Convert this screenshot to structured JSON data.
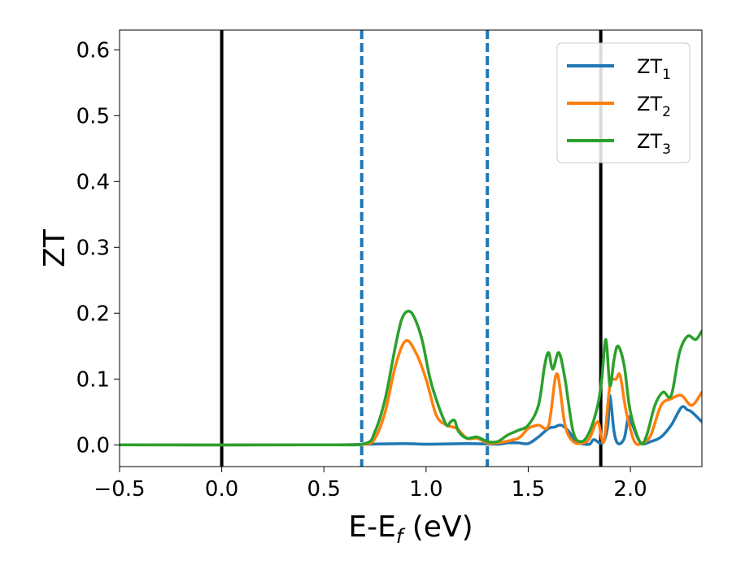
{
  "chart_data": {
    "type": "line",
    "xlabel": "E-E",
    "xlabel_sub": "f",
    "xlabel_unit": " (eV)",
    "ylabel": "ZT",
    "xlim": [
      -0.5,
      2.35
    ],
    "ylim": [
      -0.033,
      0.63
    ],
    "xticks": [
      -0.5,
      0.0,
      0.5,
      1.0,
      1.5,
      2.0
    ],
    "xtick_labels": [
      "−0.5",
      "0.0",
      "0.5",
      "1.0",
      "1.5",
      "2.0"
    ],
    "yticks": [
      0.0,
      0.1,
      0.2,
      0.3,
      0.4,
      0.5,
      0.6
    ],
    "ytick_labels": [
      "0.0",
      "0.1",
      "0.2",
      "0.3",
      "0.4",
      "0.5",
      "0.6"
    ],
    "legend_position": "top-right",
    "vlines": [
      {
        "x": 0.0,
        "style": "solid",
        "color": "#000000"
      },
      {
        "x": 1.855,
        "style": "solid",
        "color": "#000000"
      },
      {
        "x": 0.685,
        "style": "dashed",
        "color": "#1f77b4"
      },
      {
        "x": 1.3,
        "style": "dashed",
        "color": "#1f77b4"
      }
    ],
    "series": [
      {
        "name": "ZT",
        "sub": "1",
        "color": "#1f77b4",
        "x": [
          -0.5,
          0.5,
          0.7,
          0.9,
          1.0,
          1.2,
          1.35,
          1.4,
          1.45,
          1.5,
          1.55,
          1.6,
          1.63,
          1.66,
          1.7,
          1.73,
          1.76,
          1.8,
          1.82,
          1.85,
          1.87,
          1.89,
          1.9,
          1.92,
          1.94,
          1.97,
          1.99,
          2.01,
          2.05,
          2.1,
          2.15,
          2.2,
          2.25,
          2.28,
          2.3,
          2.35
        ],
        "y": [
          0,
          0,
          0.001,
          0.002,
          0.001,
          0.002,
          0.001,
          0.003,
          0.003,
          0.002,
          0.012,
          0.025,
          0.027,
          0.03,
          0.02,
          0.005,
          0.002,
          0.001,
          0.008,
          0.003,
          0.005,
          0.03,
          0.075,
          0.02,
          0.002,
          0.01,
          0.042,
          0.03,
          0.003,
          0.005,
          0.012,
          0.03,
          0.057,
          0.053,
          0.05,
          0.035
        ]
      },
      {
        "name": "ZT",
        "sub": "2",
        "color": "#ff7f0e",
        "x": [
          -0.5,
          0.5,
          0.7,
          0.75,
          0.8,
          0.85,
          0.9,
          0.95,
          1.0,
          1.05,
          1.1,
          1.15,
          1.2,
          1.25,
          1.3,
          1.35,
          1.45,
          1.5,
          1.55,
          1.6,
          1.64,
          1.68,
          1.72,
          1.77,
          1.8,
          1.84,
          1.87,
          1.9,
          1.93,
          1.95,
          1.98,
          2.02,
          2.06,
          2.1,
          2.15,
          2.2,
          2.25,
          2.3,
          2.35
        ],
        "y": [
          0,
          0,
          0.001,
          0.01,
          0.05,
          0.12,
          0.158,
          0.14,
          0.1,
          0.045,
          0.03,
          0.025,
          0.01,
          0.01,
          0.003,
          0.003,
          0.01,
          0.025,
          0.03,
          0.03,
          0.108,
          0.03,
          0.005,
          0.003,
          0.01,
          0.035,
          0.005,
          0.09,
          0.1,
          0.105,
          0.05,
          0.005,
          0.003,
          0.015,
          0.06,
          0.07,
          0.075,
          0.06,
          0.08
        ]
      },
      {
        "name": "ZT",
        "sub": "3",
        "color": "#2ca02c",
        "x": [
          -0.5,
          0.5,
          0.7,
          0.75,
          0.8,
          0.85,
          0.88,
          0.91,
          0.94,
          0.98,
          1.02,
          1.06,
          1.1,
          1.12,
          1.14,
          1.16,
          1.2,
          1.25,
          1.3,
          1.35,
          1.4,
          1.45,
          1.5,
          1.55,
          1.58,
          1.6,
          1.62,
          1.65,
          1.68,
          1.72,
          1.76,
          1.8,
          1.84,
          1.86,
          1.88,
          1.9,
          1.92,
          1.94,
          1.97,
          2.0,
          2.05,
          2.08,
          2.12,
          2.16,
          2.2,
          2.24,
          2.28,
          2.32,
          2.35
        ],
        "y": [
          0,
          0,
          0.002,
          0.02,
          0.07,
          0.15,
          0.19,
          0.203,
          0.195,
          0.16,
          0.1,
          0.06,
          0.03,
          0.035,
          0.037,
          0.02,
          0.01,
          0.012,
          0.005,
          0.005,
          0.015,
          0.022,
          0.03,
          0.06,
          0.12,
          0.14,
          0.115,
          0.14,
          0.1,
          0.02,
          0.005,
          0.02,
          0.06,
          0.1,
          0.16,
          0.09,
          0.13,
          0.15,
          0.12,
          0.05,
          0.003,
          0.015,
          0.06,
          0.08,
          0.075,
          0.14,
          0.165,
          0.16,
          0.173
        ]
      }
    ]
  }
}
